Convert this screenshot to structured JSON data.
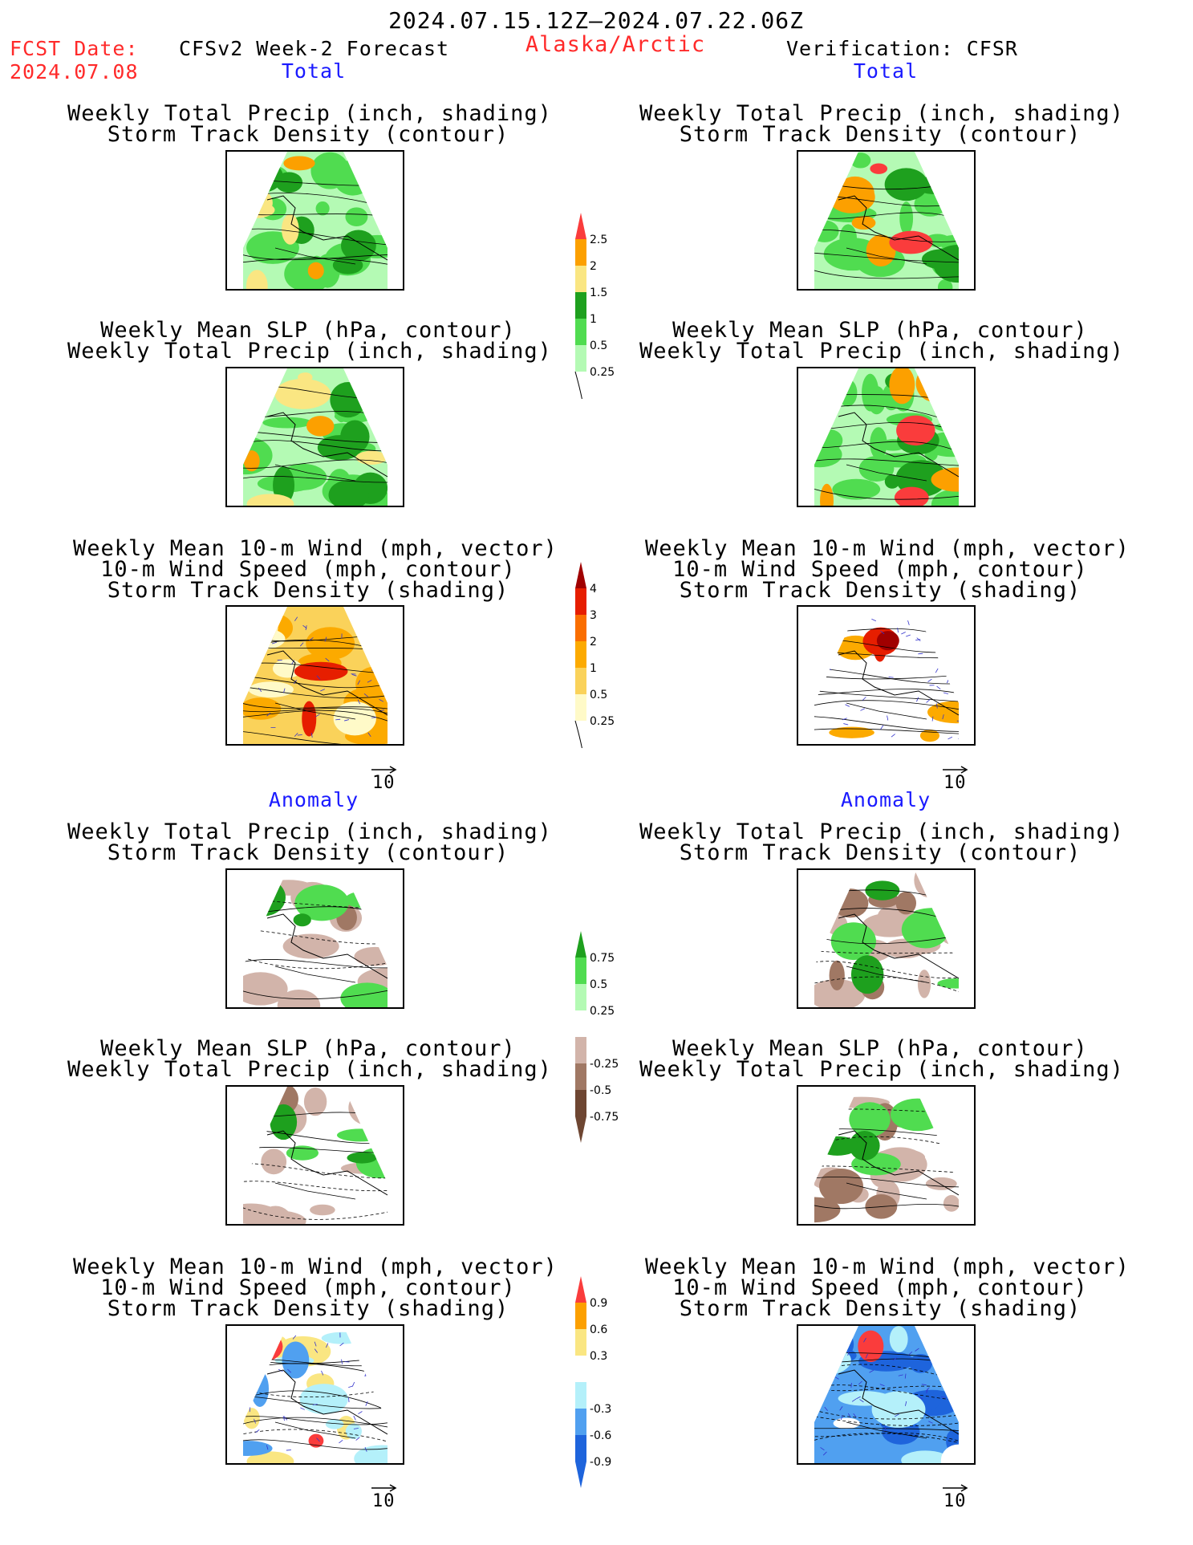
{
  "header": {
    "date_range": "2024.07.15.12Z–2024.07.22.06Z",
    "fcst_label": "FCST Date:",
    "fcst_date": "2024.07.08",
    "forecast_title": "CFSv2 Week-2 Forecast",
    "region": "Alaska/Arctic",
    "verification": "Verification: CFSR"
  },
  "sections": {
    "total_left": "Total",
    "total_right": "Total",
    "anomaly_left": "Anomaly",
    "anomaly_right": "Anomaly"
  },
  "titles": {
    "precip_storm_1": "Weekly Total Precip (inch, shading)",
    "precip_storm_2": "Storm Track Density (contour)",
    "slp_precip_1": "Weekly Mean SLP (hPa, contour)",
    "slp_precip_2": "Weekly Total Precip (inch, shading)",
    "wind_1": "Weekly Mean 10-m Wind (mph, vector)",
    "wind_2": "10-m Wind Speed (mph, contour)",
    "wind_3": "Storm Track Density (shading)"
  },
  "arrow_label": "10",
  "colors": {
    "red_text": "#ff2a2a",
    "blue_text": "#1a1aff",
    "precip_scale": [
      "#b4fab4",
      "#50dc50",
      "#1ea01e",
      "#fae682",
      "#fca000",
      "#fa3c3c"
    ],
    "storm_scale": [
      "#fffac8",
      "#fad25a",
      "#fcaa00",
      "#fa6e00",
      "#e61e00",
      "#a00000"
    ],
    "precip_anom_scale": [
      "#6e4632",
      "#a07864",
      "#d2b4aa",
      "#ffffff",
      "#b4fab4",
      "#50dc50",
      "#1ea01e"
    ],
    "storm_anom_scale": [
      "#1e64dc",
      "#50a0f0",
      "#b4f0fa",
      "#ffffff",
      "#fae682",
      "#fca000",
      "#fa3c3c"
    ]
  },
  "chart_data": [
    {
      "type": "heatmap",
      "title": "Weekly Total Precip (inch, shading)",
      "colorbar_ticks": [
        "0.25",
        "0.5",
        "1",
        "1.5",
        "2",
        "2.5"
      ],
      "panels": [
        "Total forecast: precip + storm track density",
        "Total forecast: SLP + precip",
        "Total verification: precip + storm track density",
        "Total verification: SLP + precip"
      ]
    },
    {
      "type": "heatmap",
      "title": "Storm Track Density (shading)",
      "colorbar_ticks": [
        "0.25",
        "0.5",
        "1",
        "2",
        "3",
        "4"
      ]
    },
    {
      "type": "heatmap",
      "title": "Weekly Total Precip anomaly (inch, shading)",
      "colorbar_ticks": [
        "-0.75",
        "-0.5",
        "-0.25",
        "0.25",
        "0.5",
        "0.75"
      ]
    },
    {
      "type": "heatmap",
      "title": "Storm Track Density anomaly (shading)",
      "colorbar_ticks": [
        "-0.9",
        "-0.6",
        "-0.3",
        "0.3",
        "0.6",
        "0.9"
      ]
    }
  ]
}
